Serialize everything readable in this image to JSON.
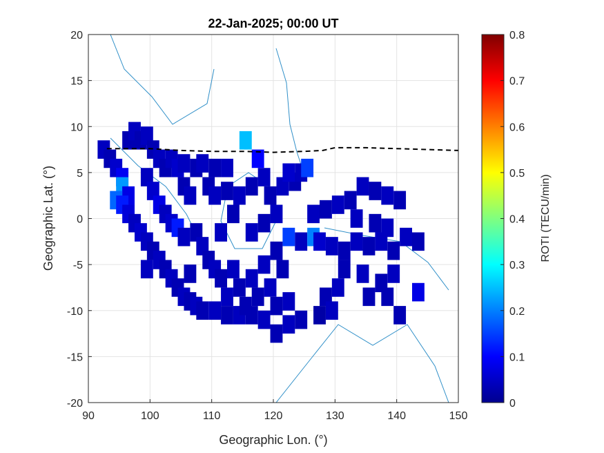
{
  "chart_data": {
    "type": "heatmap",
    "title": "22-Jan-2025; 00:00 UT",
    "xlabel": "Geographic Lon. (°)",
    "ylabel": "Geographic Lat. (°)",
    "xlim": [
      90,
      150
    ],
    "ylim": [
      -20,
      20
    ],
    "xticks": [
      "90",
      "100",
      "110",
      "120",
      "130",
      "140",
      "150"
    ],
    "yticks": [
      "20",
      "15",
      "10",
      "5",
      "0",
      "-5",
      "-10",
      "-15",
      "-20"
    ],
    "grid": true,
    "colorbar": {
      "label": "ROTI (TECU/min)",
      "min": 0,
      "max": 0.8,
      "ticks": [
        "0.8",
        "0.7",
        "0.6",
        "0.5",
        "0.4",
        "0.3",
        "0.2",
        "0.1",
        "0"
      ]
    },
    "dashed_line": {
      "lon": [
        93,
        100,
        105,
        110,
        115,
        120,
        125,
        128,
        130,
        135,
        140,
        145,
        150
      ],
      "lat": [
        7.6,
        7.6,
        7.4,
        7.3,
        7.3,
        7.2,
        7.3,
        7.4,
        7.7,
        7.7,
        7.6,
        7.5,
        7.4
      ]
    },
    "cells": [
      [
        92.5,
        7.5,
        0.05
      ],
      [
        93.5,
        6.5,
        0.04
      ],
      [
        94.5,
        5.5,
        0.06
      ],
      [
        95.5,
        4.5,
        0.09
      ],
      [
        95.5,
        3.5,
        0.22
      ],
      [
        96.5,
        2.5,
        0.08
      ],
      [
        94.5,
        2.0,
        0.18
      ],
      [
        95.5,
        1.5,
        0.12
      ],
      [
        96.5,
        0.5,
        0.07
      ],
      [
        97.5,
        -0.5,
        0.05
      ],
      [
        98.5,
        -1.5,
        0.06
      ],
      [
        99.5,
        -2.5,
        0.05
      ],
      [
        100.5,
        -3.5,
        0.04
      ],
      [
        101.5,
        -4.5,
        0.05
      ],
      [
        102.5,
        -5.5,
        0.04
      ],
      [
        103.5,
        -6.5,
        0.05
      ],
      [
        104.5,
        -7.5,
        0.04
      ],
      [
        105.5,
        -8.5,
        0.05
      ],
      [
        106.5,
        -9.0,
        0.04
      ],
      [
        107.5,
        -9.5,
        0.05
      ],
      [
        108.5,
        -10.0,
        0.04
      ],
      [
        110.5,
        -10.0,
        0.05
      ],
      [
        112.5,
        -10.5,
        0.04
      ],
      [
        114.5,
        -10.5,
        0.05
      ],
      [
        116.5,
        -10.5,
        0.04
      ],
      [
        118.5,
        -11.0,
        0.05
      ],
      [
        120.5,
        -12.5,
        0.04
      ],
      [
        122.5,
        -11.5,
        0.05
      ],
      [
        124.5,
        -11.0,
        0.04
      ],
      [
        127.5,
        -10.5,
        0.03
      ],
      [
        96.5,
        8.5,
        0.04
      ],
      [
        97.5,
        9.5,
        0.05
      ],
      [
        98.5,
        8.5,
        0.04
      ],
      [
        99.5,
        9.0,
        0.05
      ],
      [
        100.5,
        7.5,
        0.04
      ],
      [
        101.5,
        6.5,
        0.05
      ],
      [
        102.5,
        5.5,
        0.04
      ],
      [
        103.5,
        6.5,
        0.05
      ],
      [
        104.5,
        5.5,
        0.06
      ],
      [
        105.5,
        6.0,
        0.05
      ],
      [
        107.5,
        5.5,
        0.04
      ],
      [
        108.5,
        6.0,
        0.05
      ],
      [
        110.5,
        5.5,
        0.04
      ],
      [
        112.5,
        5.5,
        0.05
      ],
      [
        105.5,
        3.5,
        0.04
      ],
      [
        106.5,
        2.5,
        0.05
      ],
      [
        109.5,
        3.5,
        0.04
      ],
      [
        110.5,
        2.5,
        0.05
      ],
      [
        112.5,
        3.0,
        0.04
      ],
      [
        114.5,
        2.5,
        0.05
      ],
      [
        116.5,
        3.5,
        0.04
      ],
      [
        118.5,
        4.5,
        0.05
      ],
      [
        119.5,
        2.5,
        0.04
      ],
      [
        121.5,
        3.5,
        0.05
      ],
      [
        123.5,
        4.0,
        0.04
      ],
      [
        115.5,
        8.5,
        0.25
      ],
      [
        117.5,
        6.5,
        0.1
      ],
      [
        122.5,
        5.0,
        0.06
      ],
      [
        124.5,
        5.0,
        0.05
      ],
      [
        125.5,
        5.5,
        0.15
      ],
      [
        99.5,
        4.5,
        0.05
      ],
      [
        100.5,
        3.0,
        0.06
      ],
      [
        101.5,
        1.5,
        0.08
      ],
      [
        102.5,
        0.5,
        0.05
      ],
      [
        103.5,
        -0.5,
        0.06
      ],
      [
        104.5,
        -1.0,
        0.12
      ],
      [
        105.5,
        -2.0,
        0.05
      ],
      [
        107.5,
        -1.5,
        0.04
      ],
      [
        108.5,
        -3.0,
        0.05
      ],
      [
        109.5,
        -4.5,
        0.04
      ],
      [
        110.5,
        -5.5,
        0.05
      ],
      [
        111.5,
        -6.5,
        0.04
      ],
      [
        113.5,
        -5.5,
        0.05
      ],
      [
        114.5,
        -7.5,
        0.04
      ],
      [
        116.5,
        -6.5,
        0.05
      ],
      [
        117.5,
        -8.5,
        0.04
      ],
      [
        119.5,
        -7.5,
        0.05
      ],
      [
        120.5,
        -9.5,
        0.04
      ],
      [
        122.5,
        -9.0,
        0.05
      ],
      [
        121.5,
        -5.5,
        0.04
      ],
      [
        122.5,
        -2.0,
        0.15
      ],
      [
        124.5,
        -2.5,
        0.05
      ],
      [
        126.5,
        -2.0,
        0.2
      ],
      [
        127.5,
        -2.5,
        0.06
      ],
      [
        129.5,
        -3.0,
        0.05
      ],
      [
        131.5,
        -3.5,
        0.04
      ],
      [
        133.5,
        -2.5,
        0.05
      ],
      [
        135.5,
        -3.0,
        0.04
      ],
      [
        137.5,
        -2.5,
        0.05
      ],
      [
        139.5,
        -3.5,
        0.04
      ],
      [
        141.5,
        -2.0,
        0.05
      ],
      [
        143.5,
        -2.5,
        0.04
      ],
      [
        126.5,
        0.5,
        0.05
      ],
      [
        128.5,
        1.0,
        0.04
      ],
      [
        130.5,
        1.5,
        0.05
      ],
      [
        132.5,
        2.0,
        0.04
      ],
      [
        134.5,
        3.5,
        0.05
      ],
      [
        136.5,
        3.0,
        0.04
      ],
      [
        138.5,
        2.5,
        0.05
      ],
      [
        140.5,
        2.0,
        0.04
      ],
      [
        133.5,
        0.0,
        0.05
      ],
      [
        136.5,
        -0.5,
        0.04
      ],
      [
        138.5,
        -1.0,
        0.05
      ],
      [
        131.5,
        -5.5,
        0.04
      ],
      [
        134.5,
        -6.0,
        0.05
      ],
      [
        137.5,
        -7.0,
        0.04
      ],
      [
        139.5,
        -6.0,
        0.05
      ],
      [
        138.5,
        -8.5,
        0.04
      ],
      [
        143.5,
        -8.0,
        0.08
      ],
      [
        135.5,
        -8.5,
        0.04
      ],
      [
        130.5,
        -7.5,
        0.05
      ],
      [
        128.5,
        -8.5,
        0.04
      ],
      [
        129.5,
        -10.0,
        0.05
      ],
      [
        140.5,
        -10.5,
        0.04
      ],
      [
        99.5,
        -5.5,
        0.05
      ],
      [
        106.5,
        -6.0,
        0.04
      ],
      [
        112.5,
        -8.5,
        0.05
      ],
      [
        115.5,
        -9.5,
        0.04
      ],
      [
        118.5,
        -5.0,
        0.05
      ],
      [
        120.5,
        -3.5,
        0.04
      ],
      [
        116.5,
        -1.5,
        0.05
      ],
      [
        118.5,
        -0.5,
        0.04
      ],
      [
        120.5,
        0.5,
        0.05
      ],
      [
        113.5,
        0.5,
        0.04
      ],
      [
        111.5,
        -1.5,
        0.05
      ]
    ]
  }
}
